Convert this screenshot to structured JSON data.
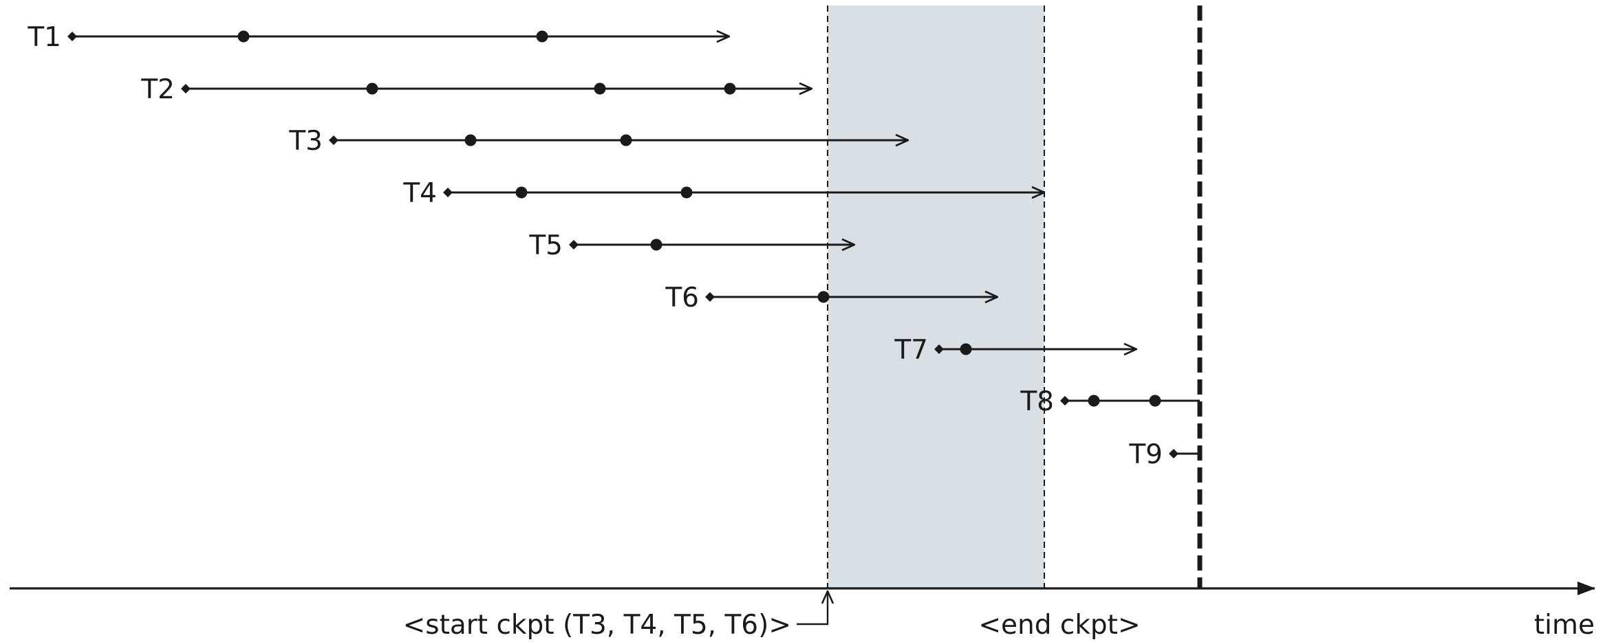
{
  "transactions": [
    {
      "label": "T1",
      "events": 2,
      "ends_in": "arrow"
    },
    {
      "label": "T2",
      "events": 3,
      "ends_in": "arrow"
    },
    {
      "label": "T3",
      "events": 2,
      "ends_in": "arrow"
    },
    {
      "label": "T4",
      "events": 2,
      "ends_in": "arrow"
    },
    {
      "label": "T5",
      "events": 1,
      "ends_in": "arrow"
    },
    {
      "label": "T6",
      "events": 1,
      "ends_in": "arrow"
    },
    {
      "label": "T7",
      "events": 1,
      "ends_in": "arrow"
    },
    {
      "label": "T8",
      "events": 2,
      "ends_in": "crash"
    },
    {
      "label": "T9",
      "events": 0,
      "ends_in": "crash"
    }
  ],
  "labels": {
    "start_ckpt": "<start ckpt (T3, T4, T5, T6)>",
    "end_ckpt": "<end ckpt>",
    "time_axis": "time"
  },
  "colors": {
    "ink": "#1a1a1a",
    "checkpoint_band": "#d8dfe5"
  }
}
